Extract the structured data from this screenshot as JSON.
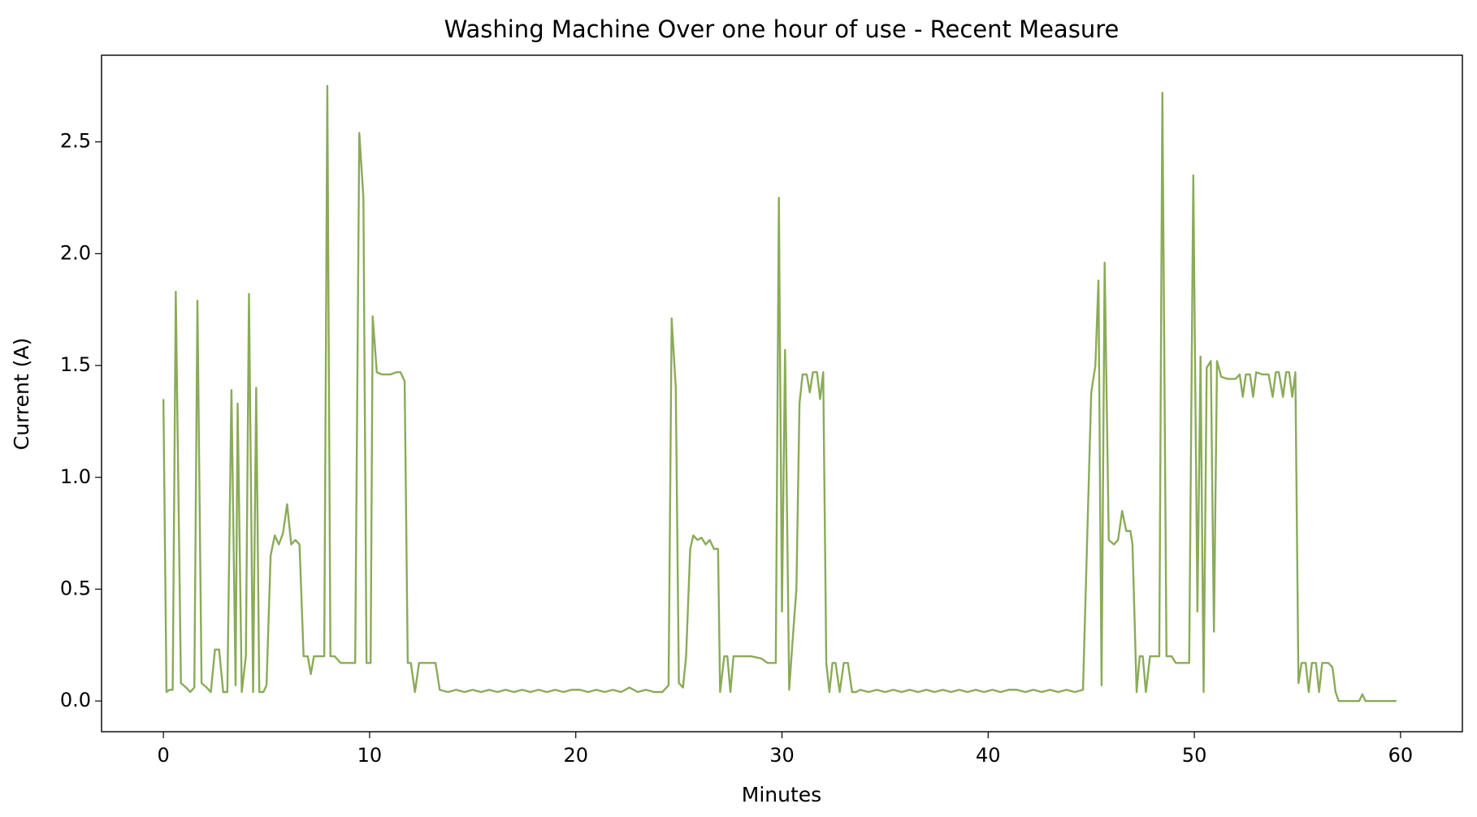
{
  "chart_data": {
    "type": "line",
    "title": "Washing Machine Over one hour of use - Recent Measure",
    "x_label": "Minutes",
    "y_label": "Current (A)",
    "xlim": [
      -3,
      63
    ],
    "ylim": [
      -0.1375,
      2.8875
    ],
    "xticks": [
      0,
      10,
      20,
      30,
      40,
      50,
      60
    ],
    "yticks": [
      {
        "value": 0,
        "label": "0.0"
      },
      0.5,
      {
        "value": 1,
        "label": "1.0"
      },
      1.5,
      {
        "value": 2,
        "label": "2.0"
      },
      2.5
    ],
    "grid": false,
    "x": [
      0,
      0.15,
      0.3,
      0.45,
      0.6,
      0.85,
      1.1,
      1.3,
      1.5,
      1.65,
      1.85,
      2.1,
      2.3,
      2.5,
      2.7,
      2.9,
      3.1,
      3.3,
      3.5,
      3.6,
      3.8,
      4.0,
      4.15,
      4.35,
      4.5,
      4.65,
      4.85,
      5.0,
      5.2,
      5.4,
      5.6,
      5.8,
      6.0,
      6.2,
      6.4,
      6.6,
      6.8,
      7.0,
      7.15,
      7.3,
      7.5,
      7.8,
      7.95,
      8.1,
      8.3,
      8.6,
      9.0,
      9.3,
      9.5,
      9.7,
      9.85,
      10.05,
      10.15,
      10.35,
      10.6,
      11.0,
      11.3,
      11.5,
      11.7,
      11.85,
      12.0,
      12.2,
      12.4,
      12.8,
      13.2,
      13.4,
      13.8,
      14.2,
      14.6,
      15.0,
      15.4,
      15.8,
      16.2,
      16.6,
      17.0,
      17.4,
      17.8,
      18.2,
      18.6,
      19.0,
      19.4,
      19.8,
      20.2,
      20.6,
      21.0,
      21.4,
      21.8,
      22.2,
      22.6,
      23.0,
      23.4,
      23.8,
      24.2,
      24.5,
      24.65,
      24.85,
      25.0,
      25.2,
      25.35,
      25.55,
      25.7,
      25.9,
      26.1,
      26.3,
      26.5,
      26.7,
      26.9,
      27.0,
      27.2,
      27.35,
      27.5,
      27.65,
      28.0,
      28.5,
      29.0,
      29.3,
      29.7,
      29.85,
      30.0,
      30.15,
      30.35,
      30.5,
      30.7,
      30.85,
      31.0,
      31.2,
      31.35,
      31.5,
      31.7,
      31.85,
      32.0,
      32.15,
      32.3,
      32.45,
      32.6,
      32.8,
      33.0,
      33.2,
      33.4,
      33.6,
      33.8,
      34.2,
      34.6,
      35.0,
      35.4,
      35.8,
      36.2,
      36.6,
      37.0,
      37.4,
      37.8,
      38.2,
      38.6,
      39.0,
      39.4,
      39.8,
      40.2,
      40.6,
      41.0,
      41.4,
      41.8,
      42.2,
      42.6,
      43.0,
      43.4,
      43.8,
      44.2,
      44.6,
      45.0,
      45.2,
      45.35,
      45.5,
      45.65,
      45.85,
      46.1,
      46.3,
      46.5,
      46.7,
      46.9,
      47.0,
      47.2,
      47.35,
      47.5,
      47.65,
      47.85,
      48.1,
      48.3,
      48.45,
      48.65,
      48.9,
      49.1,
      49.5,
      49.75,
      49.95,
      50.15,
      50.3,
      50.45,
      50.6,
      50.8,
      50.95,
      51.1,
      51.3,
      51.6,
      52.0,
      52.2,
      52.35,
      52.5,
      52.7,
      52.85,
      53.0,
      53.3,
      53.6,
      53.8,
      53.95,
      54.1,
      54.3,
      54.45,
      54.6,
      54.75,
      54.9,
      55.05,
      55.2,
      55.4,
      55.55,
      55.7,
      55.9,
      56.05,
      56.2,
      56.5,
      56.7,
      56.85,
      57.0,
      57.5,
      58.0,
      58.15,
      58.3,
      59.0,
      59.8
    ],
    "series": [
      {
        "name": "Current",
        "color": "#8aab58",
        "values": [
          1.35,
          0.04,
          0.05,
          0.05,
          1.83,
          0.08,
          0.06,
          0.04,
          0.06,
          1.79,
          0.08,
          0.06,
          0.04,
          0.23,
          0.23,
          0.04,
          0.04,
          1.39,
          0.07,
          1.33,
          0.04,
          0.2,
          1.82,
          0.04,
          1.4,
          0.04,
          0.04,
          0.07,
          0.65,
          0.74,
          0.7,
          0.75,
          0.88,
          0.7,
          0.72,
          0.7,
          0.2,
          0.2,
          0.12,
          0.2,
          0.2,
          0.2,
          2.75,
          0.2,
          0.2,
          0.17,
          0.17,
          0.17,
          2.54,
          2.25,
          0.17,
          0.17,
          1.72,
          1.47,
          1.46,
          1.46,
          1.47,
          1.47,
          1.43,
          0.17,
          0.17,
          0.04,
          0.17,
          0.17,
          0.17,
          0.05,
          0.04,
          0.05,
          0.04,
          0.05,
          0.04,
          0.05,
          0.04,
          0.05,
          0.04,
          0.05,
          0.04,
          0.05,
          0.04,
          0.05,
          0.04,
          0.05,
          0.05,
          0.04,
          0.05,
          0.04,
          0.05,
          0.04,
          0.06,
          0.04,
          0.05,
          0.04,
          0.04,
          0.07,
          1.71,
          1.4,
          0.08,
          0.06,
          0.2,
          0.68,
          0.74,
          0.72,
          0.73,
          0.7,
          0.72,
          0.68,
          0.68,
          0.04,
          0.2,
          0.2,
          0.04,
          0.2,
          0.2,
          0.2,
          0.19,
          0.17,
          0.17,
          2.25,
          0.4,
          1.57,
          0.05,
          0.25,
          0.5,
          1.33,
          1.46,
          1.46,
          1.38,
          1.47,
          1.47,
          1.35,
          1.47,
          0.17,
          0.04,
          0.17,
          0.17,
          0.04,
          0.17,
          0.17,
          0.04,
          0.04,
          0.05,
          0.04,
          0.05,
          0.04,
          0.05,
          0.04,
          0.05,
          0.04,
          0.05,
          0.04,
          0.05,
          0.04,
          0.05,
          0.04,
          0.05,
          0.04,
          0.05,
          0.04,
          0.05,
          0.05,
          0.04,
          0.05,
          0.04,
          0.05,
          0.04,
          0.05,
          0.04,
          0.05,
          1.38,
          1.5,
          1.88,
          0.07,
          1.96,
          0.72,
          0.7,
          0.72,
          0.85,
          0.76,
          0.76,
          0.7,
          0.04,
          0.2,
          0.2,
          0.04,
          0.2,
          0.2,
          0.2,
          2.72,
          0.2,
          0.2,
          0.17,
          0.17,
          0.17,
          2.35,
          0.4,
          1.54,
          0.04,
          1.49,
          1.52,
          0.31,
          1.52,
          1.45,
          1.44,
          1.44,
          1.46,
          1.36,
          1.46,
          1.46,
          1.36,
          1.47,
          1.46,
          1.46,
          1.36,
          1.47,
          1.47,
          1.36,
          1.47,
          1.47,
          1.36,
          1.47,
          0.08,
          0.17,
          0.17,
          0.04,
          0.17,
          0.17,
          0.04,
          0.17,
          0.17,
          0.15,
          0.04,
          0.0,
          0.0,
          0.0,
          0.03,
          0.0,
          0.0,
          0.0
        ]
      }
    ]
  }
}
